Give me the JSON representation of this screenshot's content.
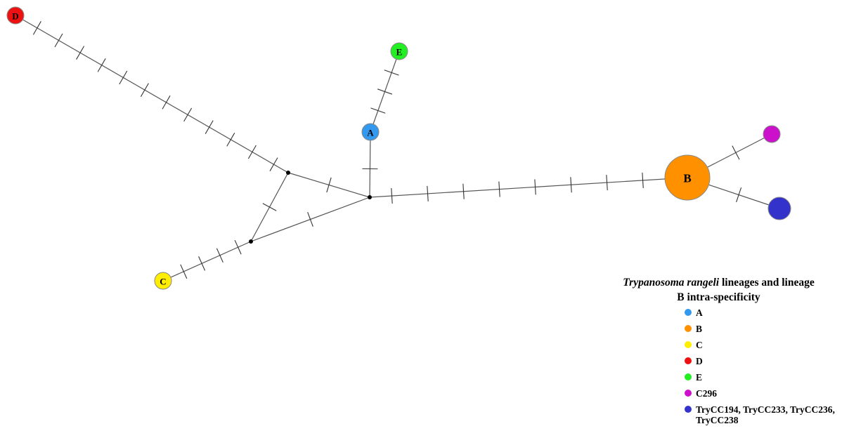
{
  "network": {
    "nodes": [
      {
        "id": "D",
        "label": "D",
        "color": "#ee1111"
      },
      {
        "id": "E",
        "label": "E",
        "color": "#22ee22"
      },
      {
        "id": "A",
        "label": "A",
        "color": "#3399ee"
      },
      {
        "id": "B",
        "label": "B",
        "color": "#ff9100"
      },
      {
        "id": "C296",
        "label": "",
        "color": "#cc11cc"
      },
      {
        "id": "TRY",
        "label": "",
        "color": "#3333cc"
      },
      {
        "id": "C",
        "label": "C",
        "color": "#ffee00"
      }
    ],
    "edges": [
      {
        "from": "D",
        "to": "J1",
        "mutations": 12
      },
      {
        "from": "J1",
        "to": "J2",
        "mutations": 1
      },
      {
        "from": "J1",
        "to": "J3",
        "mutations": 1
      },
      {
        "from": "J2",
        "to": "A",
        "mutations": 1
      },
      {
        "from": "A",
        "to": "E",
        "mutations": 3
      },
      {
        "from": "J2",
        "to": "J3",
        "mutations": 1
      },
      {
        "from": "J3",
        "to": "C",
        "mutations": 4
      },
      {
        "from": "J2",
        "to": "B",
        "mutations": 8
      },
      {
        "from": "B",
        "to": "C296",
        "mutations": 1
      },
      {
        "from": "B",
        "to": "TRY",
        "mutations": 1
      }
    ]
  },
  "legend": {
    "title_italic": "Trypanosoma rangeli",
    "title_rest_line1": " lineages and lineage",
    "title_line2": "B intra-specificity",
    "items": [
      {
        "label": "A",
        "color": "#3399ee"
      },
      {
        "label": "B",
        "color": "#ff9100"
      },
      {
        "label": "C",
        "color": "#ffee00"
      },
      {
        "label": "D",
        "color": "#ee1111"
      },
      {
        "label": "E",
        "color": "#22ee22"
      },
      {
        "label": "C296",
        "color": "#cc11cc"
      },
      {
        "label": "TryCC194, TryCC233, TryCC236, TryCC238",
        "color": "#3333cc"
      }
    ]
  }
}
